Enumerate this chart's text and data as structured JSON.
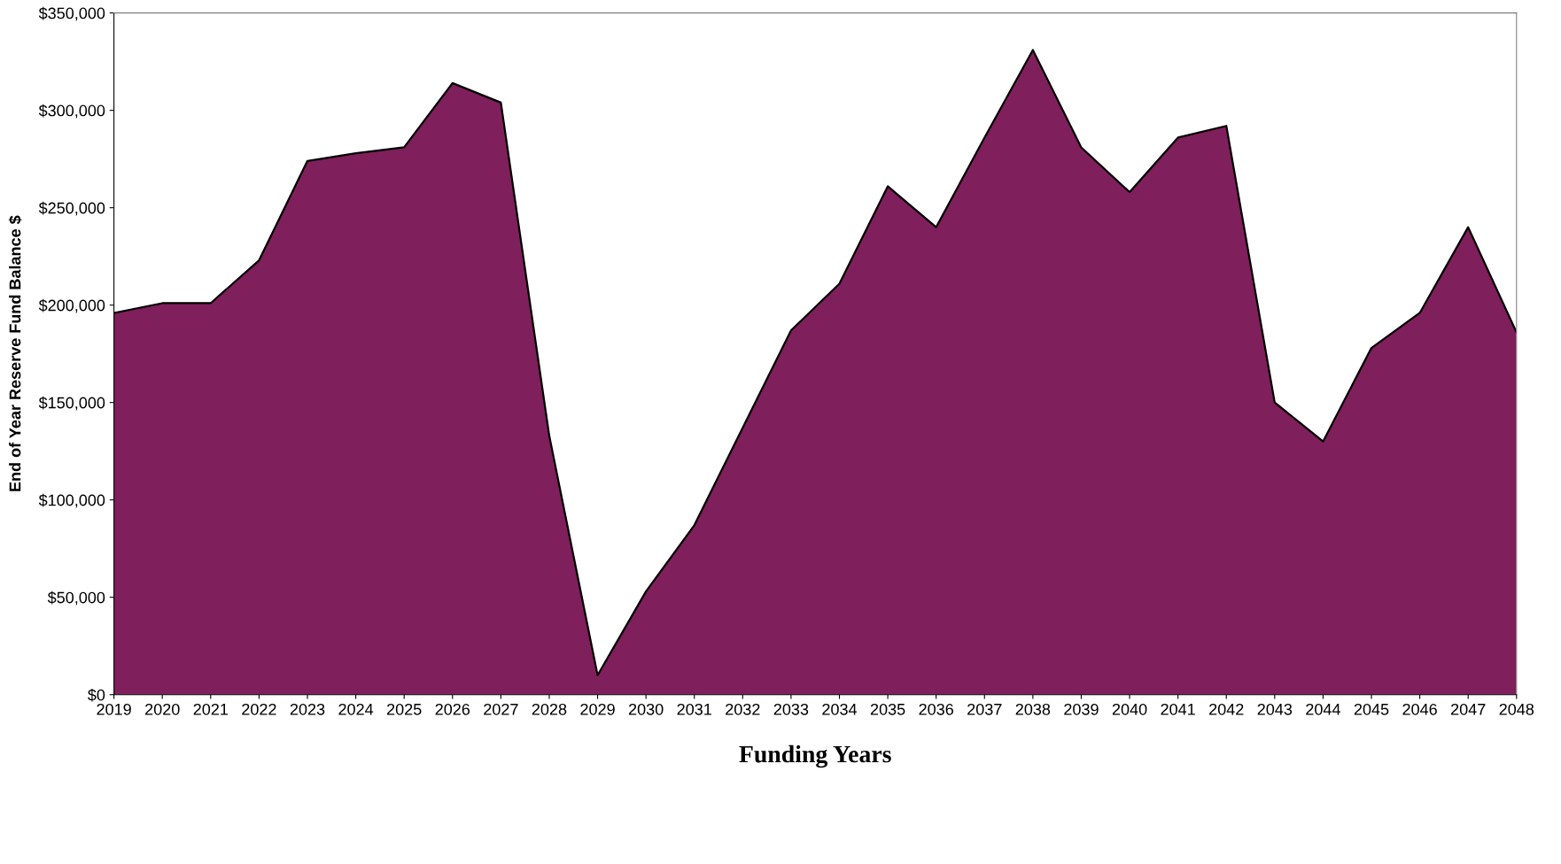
{
  "chart_data": {
    "type": "area",
    "xlabel": "Funding Years",
    "ylabel": "End of Year Reserve Fund Balance $",
    "categories": [
      "2019",
      "2020",
      "2021",
      "2022",
      "2023",
      "2024",
      "2025",
      "2026",
      "2027",
      "2028",
      "2029",
      "2030",
      "2031",
      "2032",
      "2033",
      "2034",
      "2035",
      "2036",
      "2037",
      "2038",
      "2039",
      "2040",
      "2041",
      "2042",
      "2043",
      "2044",
      "2045",
      "2046",
      "2047",
      "2048"
    ],
    "series": [
      {
        "color": "#7f1f5b",
        "values": [
          196000,
          201000,
          201000,
          223000,
          274000,
          278000,
          281000,
          314000,
          304000,
          133000,
          10000,
          53000,
          87000,
          137000,
          187000,
          211000,
          261000,
          240000,
          286000,
          331000,
          281000,
          258000,
          286000,
          292000,
          150000,
          130000,
          178000,
          196000,
          240000,
          186000
        ]
      }
    ],
    "ylim": [
      0,
      350000
    ],
    "yticks": [
      {
        "value": 0,
        "label": "$0"
      },
      {
        "value": 50000,
        "label": "$50,000"
      },
      {
        "value": 100000,
        "label": "$100,000"
      },
      {
        "value": 150000,
        "label": "$150,000"
      },
      {
        "value": 200000,
        "label": "$200,000"
      },
      {
        "value": 250000,
        "label": "$250,000"
      },
      {
        "value": 300000,
        "label": "$300,000"
      },
      {
        "value": 350000,
        "label": "$350,000"
      }
    ],
    "grid": false,
    "legend": false
  }
}
